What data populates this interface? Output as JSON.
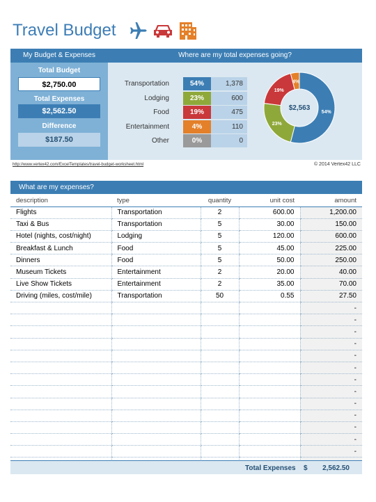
{
  "header": {
    "title": "Travel Budget"
  },
  "icons": [
    "airplane-icon",
    "car-icon",
    "building-icon"
  ],
  "summary": {
    "left_title": "My Budget & Expenses",
    "right_title": "Where are my total expenses going?",
    "total_budget_label": "Total Budget",
    "total_budget": "$2,750.00",
    "total_expenses_label": "Total Expenses",
    "total_expenses": "$2,562.50",
    "difference_label": "Difference",
    "difference": "$187.50"
  },
  "categories": [
    {
      "label": "Transportation",
      "pct": "54%",
      "value": "1,378",
      "color": "#3c7eb4"
    },
    {
      "label": "Lodging",
      "pct": "23%",
      "value": "600",
      "color": "#8fa83a"
    },
    {
      "label": "Food",
      "pct": "19%",
      "value": "475",
      "color": "#c9383a"
    },
    {
      "label": "Entertainment",
      "pct": "4%",
      "value": "110",
      "color": "#e4802a"
    },
    {
      "label": "Other",
      "pct": "0%",
      "value": "0",
      "color": "#9a9a9a"
    }
  ],
  "chart_data": {
    "type": "pie",
    "center_label": "$2,563",
    "slices": [
      {
        "name": "Transportation",
        "value": 54,
        "label": "54%"
      },
      {
        "name": "Lodging",
        "value": 23,
        "label": "23%"
      },
      {
        "name": "Food",
        "value": 19,
        "label": "19%"
      },
      {
        "name": "Entertainment",
        "value": 4,
        "label": "4%"
      },
      {
        "name": "Other",
        "value": 0,
        "label": ""
      }
    ]
  },
  "footer": {
    "url": "http://www.vertex42.com/ExcelTemplates/travel-budget-worksheet.html",
    "copyright": "© 2014 Vertex42 LLC"
  },
  "expenses": {
    "title": "What are my expenses?",
    "columns": {
      "description": "description",
      "type": "type",
      "quantity": "quantity",
      "unit_cost": "unit cost",
      "amount": "amount"
    },
    "rows": [
      {
        "description": "Flights",
        "type": "Transportation",
        "quantity": "2",
        "unit_cost": "600.00",
        "amount": "1,200.00"
      },
      {
        "description": "Taxi & Bus",
        "type": "Transportation",
        "quantity": "5",
        "unit_cost": "30.00",
        "amount": "150.00"
      },
      {
        "description": "Hotel (nights, cost/night)",
        "type": "Lodging",
        "quantity": "5",
        "unit_cost": "120.00",
        "amount": "600.00"
      },
      {
        "description": "Breakfast & Lunch",
        "type": "Food",
        "quantity": "5",
        "unit_cost": "45.00",
        "amount": "225.00"
      },
      {
        "description": "Dinners",
        "type": "Food",
        "quantity": "5",
        "unit_cost": "50.00",
        "amount": "250.00"
      },
      {
        "description": "Museum Tickets",
        "type": "Entertainment",
        "quantity": "2",
        "unit_cost": "20.00",
        "amount": "40.00"
      },
      {
        "description": "Live Show Tickets",
        "type": "Entertainment",
        "quantity": "2",
        "unit_cost": "35.00",
        "amount": "70.00"
      },
      {
        "description": "Driving (miles, cost/mile)",
        "type": "Transportation",
        "quantity": "50",
        "unit_cost": "0.55",
        "amount": "27.50"
      },
      {
        "description": "",
        "type": "",
        "quantity": "",
        "unit_cost": "",
        "amount": "-"
      },
      {
        "description": "",
        "type": "",
        "quantity": "",
        "unit_cost": "",
        "amount": "-"
      },
      {
        "description": "",
        "type": "",
        "quantity": "",
        "unit_cost": "",
        "amount": "-"
      },
      {
        "description": "",
        "type": "",
        "quantity": "",
        "unit_cost": "",
        "amount": "-"
      },
      {
        "description": "",
        "type": "",
        "quantity": "",
        "unit_cost": "",
        "amount": "-"
      },
      {
        "description": "",
        "type": "",
        "quantity": "",
        "unit_cost": "",
        "amount": "-"
      },
      {
        "description": "",
        "type": "",
        "quantity": "",
        "unit_cost": "",
        "amount": "-"
      },
      {
        "description": "",
        "type": "",
        "quantity": "",
        "unit_cost": "",
        "amount": "-"
      },
      {
        "description": "",
        "type": "",
        "quantity": "",
        "unit_cost": "",
        "amount": "-"
      },
      {
        "description": "",
        "type": "",
        "quantity": "",
        "unit_cost": "",
        "amount": "-"
      },
      {
        "description": "",
        "type": "",
        "quantity": "",
        "unit_cost": "",
        "amount": "-"
      },
      {
        "description": "",
        "type": "",
        "quantity": "",
        "unit_cost": "",
        "amount": "-"
      },
      {
        "description": "",
        "type": "",
        "quantity": "",
        "unit_cost": "",
        "amount": "-"
      },
      {
        "description": "",
        "type": "",
        "quantity": "",
        "unit_cost": "",
        "amount": "-"
      }
    ],
    "total_label": "Total Expenses",
    "total_currency": "$",
    "total_value": "2,562.50"
  }
}
